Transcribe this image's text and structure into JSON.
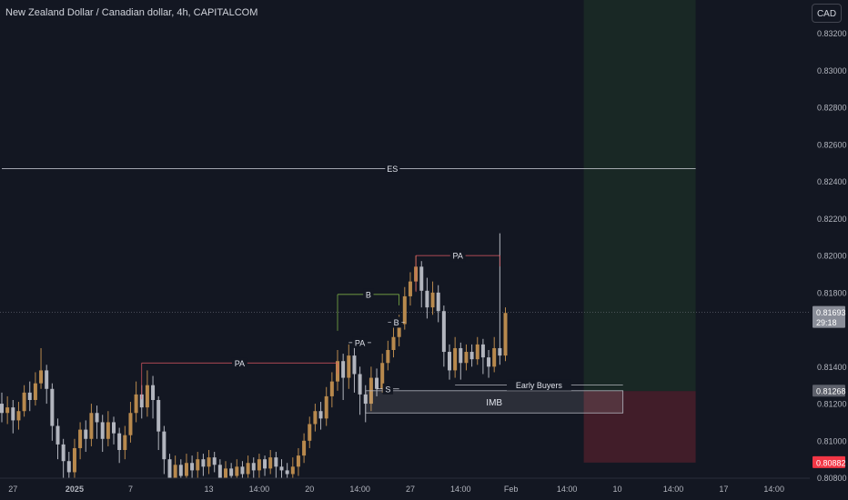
{
  "header": {
    "symbol_title": "New Zealand Dollar / Canadian dollar, 4h, CAPITALCOM",
    "currency_button": "CAD"
  },
  "colors": {
    "background": "#131722",
    "bullish_candle": "#b8894d",
    "bearish_candle": "#b2b5be",
    "profit_zone": "#1b2a26",
    "loss_zone": "#4a1e2a",
    "pa_line": "#e05a64",
    "structure_line": "#8bc34a",
    "white_line": "#d1d4dc",
    "current_price_badge": "#8a8e99",
    "stop_badge": "#f23645"
  },
  "chart_data": {
    "type": "candlestick",
    "symbol": "NZDCAD",
    "timeframe": "4h",
    "ylim": [
      0.8068,
      0.8338
    ],
    "y_ticks": [
      "0.83200",
      "0.83000",
      "0.82800",
      "0.82600",
      "0.82400",
      "0.82200",
      "0.82000",
      "0.81800",
      "0.81400",
      "0.81200",
      "0.81000",
      "0.80800"
    ],
    "y_tick_values": [
      0.832,
      0.83,
      0.828,
      0.826,
      0.824,
      0.822,
      0.82,
      0.818,
      0.814,
      0.812,
      0.81,
      0.808
    ],
    "x_ticks": [
      "27",
      "2025",
      "7",
      "13",
      "14:00",
      "20",
      "14:00",
      "27",
      "14:00",
      "Feb",
      "14:00",
      "10",
      "14:00",
      "17",
      "14:00"
    ],
    "x_tick_index": [
      2,
      13,
      23,
      37,
      46,
      55,
      64,
      73,
      82,
      91,
      101,
      110,
      120,
      129,
      138
    ],
    "price_badges": [
      {
        "label": "0.81693",
        "value": 0.81693,
        "sub": "29:18",
        "kind": "current"
      },
      {
        "label": "0.81268",
        "value": 0.81268,
        "kind": "entry"
      },
      {
        "label": "0.80882",
        "value": 0.80882,
        "kind": "stop"
      }
    ],
    "annotations": [
      {
        "text": "ES",
        "type": "hline",
        "value": 0.8247,
        "x0": 0,
        "x1": 124
      },
      {
        "text": "PA",
        "type": "level",
        "value": 0.8142,
        "x0": 25,
        "x1": 60,
        "color": "pa"
      },
      {
        "text": "B",
        "type": "level",
        "value": 0.8179,
        "x0": 60,
        "x1": 71,
        "color": "structure"
      },
      {
        "text": "PA",
        "type": "level",
        "value": 0.8153,
        "x0": 62,
        "x1": 66,
        "color": "white"
      },
      {
        "text": "B",
        "type": "level",
        "value": 0.8164,
        "x0": 69,
        "x1": 72,
        "color": "white"
      },
      {
        "text": "S",
        "type": "level",
        "value": 0.8128,
        "x0": 67,
        "x1": 71,
        "color": "white"
      },
      {
        "text": "PA",
        "type": "level",
        "value": 0.82,
        "x0": 74,
        "x1": 89,
        "color": "pa"
      },
      {
        "text": "Early Buyers",
        "type": "level",
        "value": 0.813,
        "x0": 81,
        "x1": 111,
        "color": "white"
      }
    ],
    "zones": [
      {
        "text": "IMB",
        "x0": 65,
        "x1": 111,
        "y_top": 0.8127,
        "y_bottom": 0.8115
      },
      {
        "kind": "profit",
        "x0": 104,
        "x1": 124,
        "y_top": 0.8338,
        "y_bottom": 0.81268
      },
      {
        "kind": "loss",
        "x0": 104,
        "x1": 124,
        "y_top": 0.81268,
        "y_bottom": 0.80882
      }
    ],
    "candles": [
      [
        0.812,
        0.8115,
        0.8126,
        0.811
      ],
      [
        0.8115,
        0.8118,
        0.8124,
        0.8109
      ],
      [
        0.8118,
        0.8111,
        0.8122,
        0.8104
      ],
      [
        0.8111,
        0.8116,
        0.8121,
        0.8106
      ],
      [
        0.8116,
        0.8126,
        0.813,
        0.8113
      ],
      [
        0.8126,
        0.8122,
        0.8132,
        0.8116
      ],
      [
        0.8122,
        0.8131,
        0.8137,
        0.8119
      ],
      [
        0.8131,
        0.8138,
        0.815,
        0.8128
      ],
      [
        0.8138,
        0.8128,
        0.8141,
        0.812
      ],
      [
        0.8128,
        0.8108,
        0.8131,
        0.81
      ],
      [
        0.8108,
        0.8098,
        0.8112,
        0.809
      ],
      [
        0.8098,
        0.8089,
        0.8101,
        0.808
      ],
      [
        0.8089,
        0.8083,
        0.8094,
        0.807
      ],
      [
        0.8083,
        0.8096,
        0.8101,
        0.8078
      ],
      [
        0.8096,
        0.8106,
        0.811,
        0.809
      ],
      [
        0.8106,
        0.8101,
        0.8111,
        0.8094
      ],
      [
        0.8101,
        0.8115,
        0.812,
        0.8097
      ],
      [
        0.8115,
        0.811,
        0.8119,
        0.8101
      ],
      [
        0.811,
        0.8101,
        0.8114,
        0.8094
      ],
      [
        0.8101,
        0.811,
        0.8116,
        0.8097
      ],
      [
        0.811,
        0.8104,
        0.8113,
        0.8098
      ],
      [
        0.8104,
        0.8095,
        0.8107,
        0.8088
      ],
      [
        0.8095,
        0.8103,
        0.8108,
        0.809
      ],
      [
        0.8103,
        0.8115,
        0.8121,
        0.8099
      ],
      [
        0.8115,
        0.8125,
        0.8132,
        0.811
      ],
      [
        0.8125,
        0.8118,
        0.813,
        0.8112
      ],
      [
        0.8118,
        0.813,
        0.8138,
        0.8113
      ],
      [
        0.813,
        0.8122,
        0.8135,
        0.8112
      ],
      [
        0.8122,
        0.8105,
        0.8124,
        0.8095
      ],
      [
        0.8105,
        0.809,
        0.8108,
        0.8082
      ],
      [
        0.809,
        0.808,
        0.8093,
        0.807
      ],
      [
        0.808,
        0.8087,
        0.8092,
        0.8074
      ],
      [
        0.8087,
        0.8081,
        0.809,
        0.8074
      ],
      [
        0.8081,
        0.8088,
        0.8093,
        0.8077
      ],
      [
        0.8088,
        0.8084,
        0.8092,
        0.8078
      ],
      [
        0.8084,
        0.809,
        0.8094,
        0.8079
      ],
      [
        0.809,
        0.8086,
        0.8093,
        0.8081
      ],
      [
        0.8086,
        0.8091,
        0.8095,
        0.8082
      ],
      [
        0.8091,
        0.8087,
        0.8094,
        0.8083
      ],
      [
        0.8087,
        0.808,
        0.809,
        0.8076
      ],
      [
        0.808,
        0.8085,
        0.8089,
        0.8074
      ],
      [
        0.8085,
        0.8081,
        0.8088,
        0.8075
      ],
      [
        0.8081,
        0.8086,
        0.809,
        0.8076
      ],
      [
        0.8086,
        0.8082,
        0.8089,
        0.8077
      ],
      [
        0.8082,
        0.8088,
        0.8092,
        0.8078
      ],
      [
        0.8088,
        0.8084,
        0.8091,
        0.8079
      ],
      [
        0.8084,
        0.809,
        0.8093,
        0.808
      ],
      [
        0.809,
        0.8085,
        0.8092,
        0.8081
      ],
      [
        0.8085,
        0.8091,
        0.8095,
        0.8082
      ],
      [
        0.8091,
        0.8086,
        0.8094,
        0.808
      ],
      [
        0.8086,
        0.8084,
        0.809,
        0.8078
      ],
      [
        0.8084,
        0.8082,
        0.8088,
        0.8075
      ],
      [
        0.8082,
        0.8086,
        0.8091,
        0.8076
      ],
      [
        0.8086,
        0.8092,
        0.8096,
        0.8081
      ],
      [
        0.8092,
        0.81,
        0.8104,
        0.8088
      ],
      [
        0.81,
        0.8109,
        0.8113,
        0.8096
      ],
      [
        0.8109,
        0.8116,
        0.812,
        0.8105
      ],
      [
        0.8116,
        0.8112,
        0.8121,
        0.8106
      ],
      [
        0.8112,
        0.8124,
        0.8129,
        0.8108
      ],
      [
        0.8124,
        0.8132,
        0.8137,
        0.8118
      ],
      [
        0.8132,
        0.8143,
        0.8149,
        0.8127
      ],
      [
        0.8143,
        0.8134,
        0.8147,
        0.8122
      ],
      [
        0.8134,
        0.8146,
        0.8152,
        0.8128
      ],
      [
        0.8146,
        0.8136,
        0.8151,
        0.8126
      ],
      [
        0.8136,
        0.8125,
        0.814,
        0.8114
      ],
      [
        0.8125,
        0.812,
        0.813,
        0.811
      ],
      [
        0.812,
        0.8134,
        0.814,
        0.8116
      ],
      [
        0.8134,
        0.8128,
        0.8139,
        0.8124
      ],
      [
        0.8128,
        0.8142,
        0.8147,
        0.8126
      ],
      [
        0.8142,
        0.8149,
        0.8154,
        0.8138
      ],
      [
        0.8149,
        0.8156,
        0.8161,
        0.8145
      ],
      [
        0.8156,
        0.8163,
        0.8168,
        0.8151
      ],
      [
        0.8163,
        0.8178,
        0.8183,
        0.816
      ],
      [
        0.8178,
        0.8186,
        0.8191,
        0.8173
      ],
      [
        0.8186,
        0.8194,
        0.82,
        0.8181
      ],
      [
        0.8194,
        0.8181,
        0.8197,
        0.8172
      ],
      [
        0.8181,
        0.8172,
        0.8188,
        0.8166
      ],
      [
        0.8172,
        0.818,
        0.8186,
        0.8168
      ],
      [
        0.818,
        0.817,
        0.8184,
        0.8164
      ],
      [
        0.817,
        0.8148,
        0.8173,
        0.814
      ],
      [
        0.8148,
        0.8138,
        0.8152,
        0.8133
      ],
      [
        0.8138,
        0.815,
        0.8156,
        0.8134
      ],
      [
        0.815,
        0.8142,
        0.8153,
        0.8133
      ],
      [
        0.8142,
        0.8148,
        0.8152,
        0.8138
      ],
      [
        0.8148,
        0.8144,
        0.8152,
        0.814
      ],
      [
        0.8144,
        0.8152,
        0.8156,
        0.8141
      ],
      [
        0.8152,
        0.8145,
        0.8155,
        0.8136
      ],
      [
        0.8145,
        0.814,
        0.8149,
        0.8134
      ],
      [
        0.814,
        0.815,
        0.8156,
        0.8137
      ],
      [
        0.815,
        0.8146,
        0.8212,
        0.8141
      ],
      [
        0.8146,
        0.8169,
        0.8172,
        0.8143
      ]
    ]
  }
}
